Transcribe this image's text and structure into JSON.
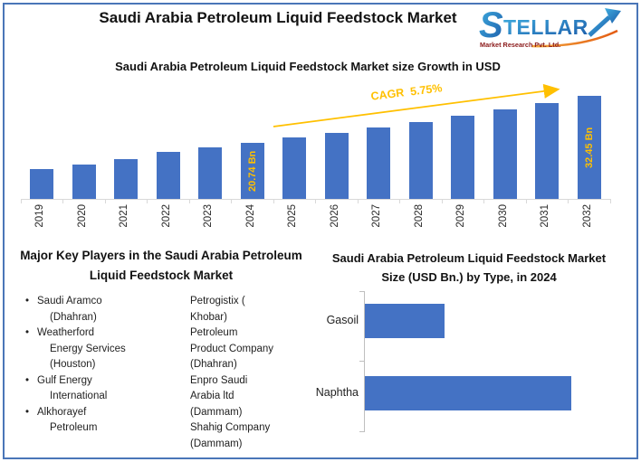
{
  "page": {
    "title": "Saudi Arabia Petroleum Liquid Feedstock Market"
  },
  "logo": {
    "text": "STELLAR",
    "s_letter": "S",
    "wordmark_rest": "TELLAR",
    "tagline": "Market Research Pvt. Ltd."
  },
  "colors": {
    "bar_blue": "#4472C4",
    "gold": "#FFC000",
    "frame_border": "#4A76B8",
    "axis_gray": "#D9D9D9"
  },
  "chart_data": [
    {
      "type": "bar",
      "title": "Saudi Arabia Petroleum Liquid Feedstock Market size Growth in USD",
      "unit": "USD Bn",
      "categories": [
        "2019",
        "2020",
        "2021",
        "2022",
        "2023",
        "2024",
        "2025",
        "2026",
        "2027",
        "2028",
        "2029",
        "2030",
        "2031",
        "2032"
      ],
      "values": [
        14.0,
        15.1,
        16.5,
        18.3,
        19.4,
        20.74,
        21.93,
        23.19,
        24.53,
        25.94,
        27.43,
        29.0,
        30.68,
        32.45
      ],
      "labeled_bars": [
        {
          "category": "2024",
          "label": "20.74 Bn"
        },
        {
          "category": "2032",
          "label": "32.45 Bn"
        }
      ],
      "annotation": {
        "text": "CAGR  5.75%",
        "cagr_percent": 5.75
      },
      "bar_color": "#4472C4",
      "xlabel": "",
      "ylabel": "",
      "grid": false,
      "legend": "none",
      "x_tick_rotation": 90
    },
    {
      "type": "bar-horizontal",
      "title": "Saudi Arabia Petroleum Liquid Feedstock Market Size (USD Bn.) by Type, in 2024",
      "unit": "USD Bn",
      "categories": [
        "Gasoil",
        "Naphtha"
      ],
      "values": [
        5.8,
        15.0
      ],
      "bar_color": "#4472C4",
      "xlabel": "",
      "ylabel": "",
      "grid": false,
      "legend": "none"
    }
  ],
  "key_players": {
    "heading": "Major Key Players in the Saudi Arabia Petroleum Liquid Feedstock Market",
    "bullet": "•",
    "column1": [
      {
        "lines": [
          "Saudi Aramco",
          "(Dhahran)"
        ]
      },
      {
        "lines": [
          "Weatherford",
          "Energy Services",
          "(Houston)"
        ]
      },
      {
        "lines": [
          "Gulf Energy",
          "International"
        ]
      },
      {
        "lines": [
          "Alkhorayef",
          "Petroleum"
        ]
      }
    ],
    "column2": [
      {
        "lines": [
          "Petrogistix (",
          "Khobar)"
        ]
      },
      {
        "lines": [
          "Petroleum",
          "Product Company",
          "(Dhahran)"
        ]
      },
      {
        "lines": [
          "Enpro Saudi",
          "Arabia ltd",
          "(Dammam)"
        ]
      },
      {
        "lines": [
          "Shahig Company",
          "(Dammam)"
        ]
      }
    ]
  }
}
